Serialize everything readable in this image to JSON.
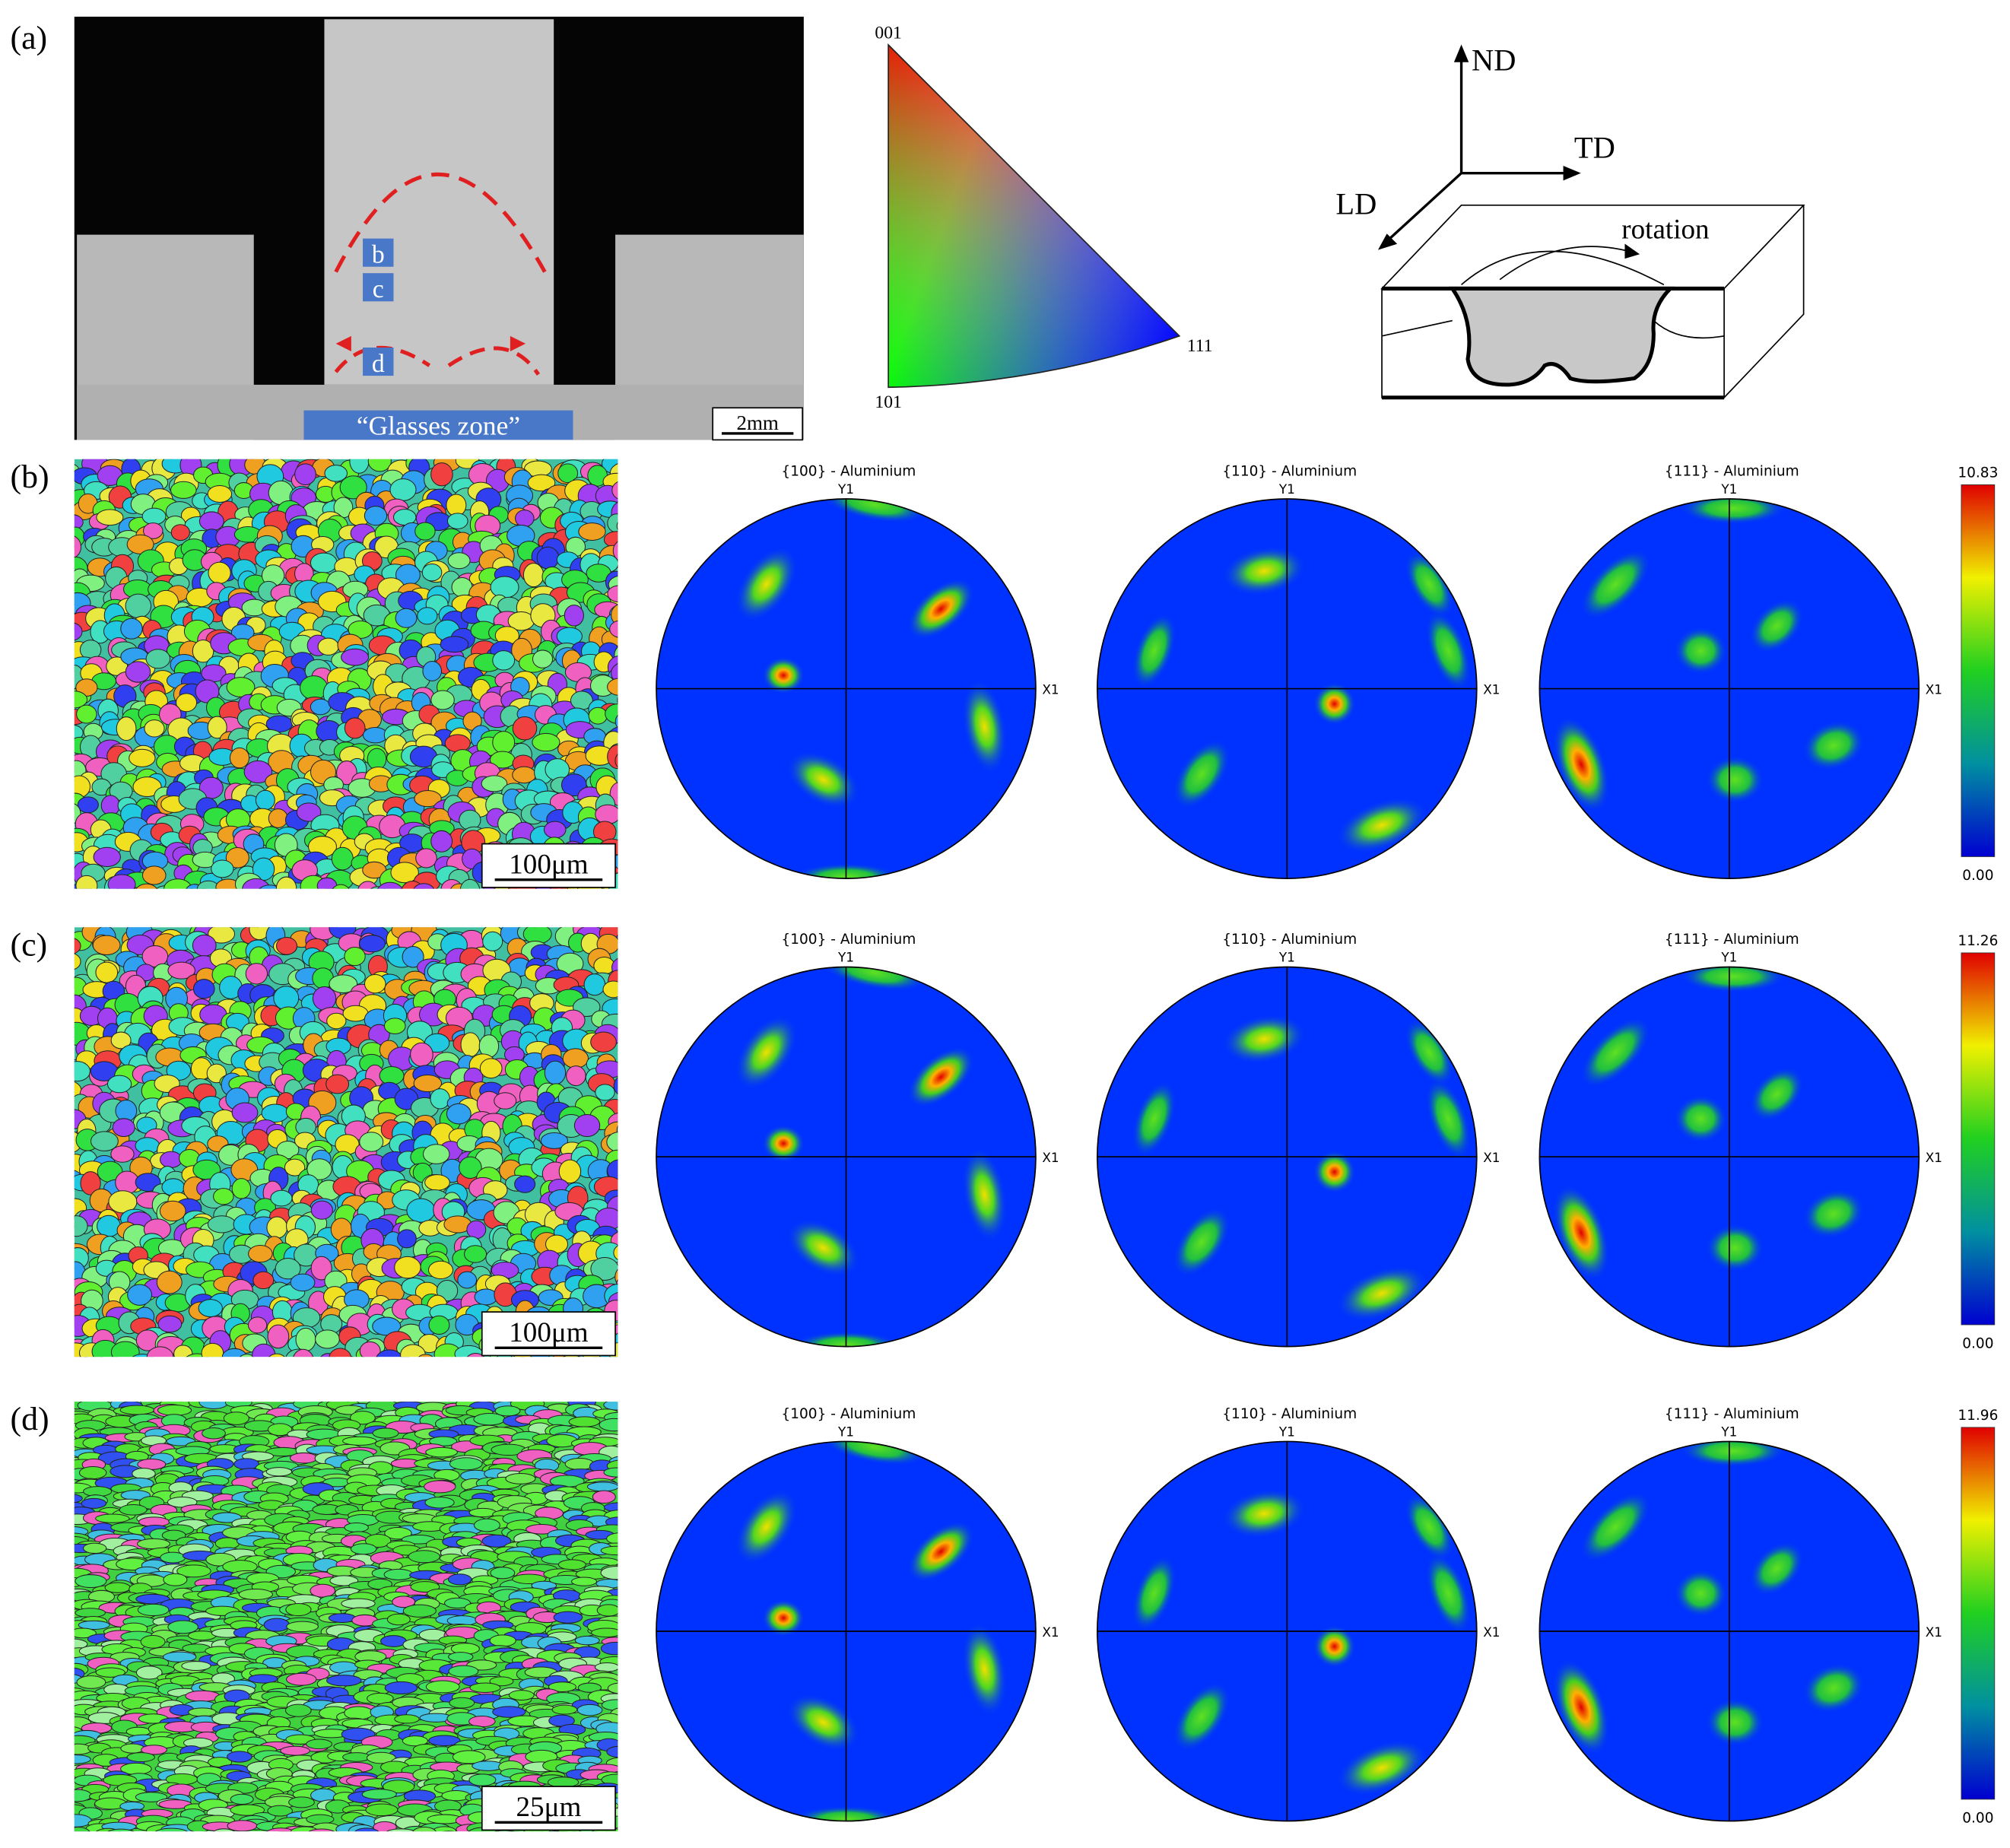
{
  "panel_a": {
    "label": "(a)",
    "markers": [
      "b",
      "c",
      "d"
    ],
    "zone_label": "“Glasses zone”",
    "scale_bar": "2mm",
    "ipf": {
      "top": "001",
      "bottom": "101",
      "right": "111"
    },
    "axes": {
      "nd": "ND",
      "td": "TD",
      "ld": "LD"
    },
    "rotation": "rotation"
  },
  "rows": [
    {
      "label": "(b)",
      "scale_bar": "100μm",
      "pole_figures": [
        {
          "title": "{100} - Aluminium",
          "y_axis": "Y1",
          "x_axis": "X1"
        },
        {
          "title": "{110} - Aluminium",
          "y_axis": "Y1",
          "x_axis": "X1"
        },
        {
          "title": "{111} - Aluminium",
          "y_axis": "Y1",
          "x_axis": "X1"
        }
      ],
      "colorbar": {
        "max": "10.83",
        "min": "0.00"
      }
    },
    {
      "label": "(c)",
      "scale_bar": "100μm",
      "pole_figures": [
        {
          "title": "{100} - Aluminium",
          "y_axis": "Y1",
          "x_axis": "X1"
        },
        {
          "title": "{110} - Aluminium",
          "y_axis": "Y1",
          "x_axis": "X1"
        },
        {
          "title": "{111} - Aluminium",
          "y_axis": "Y1",
          "x_axis": "X1"
        }
      ],
      "colorbar": {
        "max": "11.26",
        "min": "0.00"
      }
    },
    {
      "label": "(d)",
      "scale_bar": "25μm",
      "pole_figures": [
        {
          "title": "{100} - Aluminium",
          "y_axis": "Y1",
          "x_axis": "X1"
        },
        {
          "title": "{110} - Aluminium",
          "y_axis": "Y1",
          "x_axis": "X1"
        },
        {
          "title": "{111} - Aluminium",
          "y_axis": "Y1",
          "x_axis": "X1"
        }
      ],
      "colorbar": {
        "max": "11.96",
        "min": "0.00"
      }
    }
  ]
}
